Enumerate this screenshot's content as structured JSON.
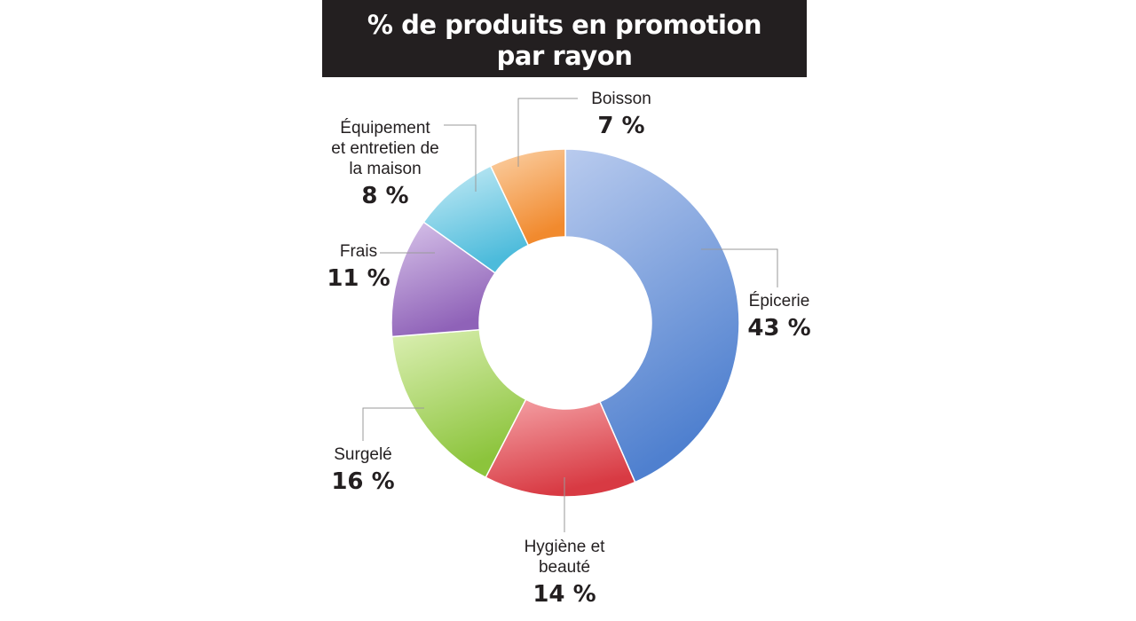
{
  "title_lines": [
    "% de produits en promotion",
    "par rayon"
  ],
  "chart_data": {
    "type": "pie",
    "variant": "donut",
    "title": "% de produits en promotion par rayon",
    "unit": "%",
    "slices": [
      {
        "id": "epicerie",
        "label_lines": [
          "Épicerie"
        ],
        "value": 43,
        "value_label": "43 %",
        "color_light": "#b9cbee",
        "color_dark": "#4f80cf"
      },
      {
        "id": "hygiene",
        "label_lines": [
          "Hygiène et",
          "beauté"
        ],
        "value": 14,
        "value_label": "14 %",
        "color_light": "#f5a4a8",
        "color_dark": "#d83a43"
      },
      {
        "id": "surgele",
        "label_lines": [
          "Surgelé"
        ],
        "value": 16,
        "value_label": "16 %",
        "color_light": "#dcf0b4",
        "color_dark": "#8cc43c"
      },
      {
        "id": "frais",
        "label_lines": [
          "Frais"
        ],
        "value": 11,
        "value_label": "11 %",
        "color_light": "#d8c4ea",
        "color_dark": "#8f62b8"
      },
      {
        "id": "equipement",
        "label_lines": [
          "Équipement",
          "et entretien de",
          "la maison"
        ],
        "value": 8,
        "value_label": "8 %",
        "color_light": "#c8ecf6",
        "color_dark": "#4cbbdb"
      },
      {
        "id": "boisson",
        "label_lines": [
          "Boisson"
        ],
        "value": 7,
        "value_label": "7 %",
        "color_light": "#fbd1a6",
        "color_dark": "#f18a2e"
      }
    ]
  }
}
